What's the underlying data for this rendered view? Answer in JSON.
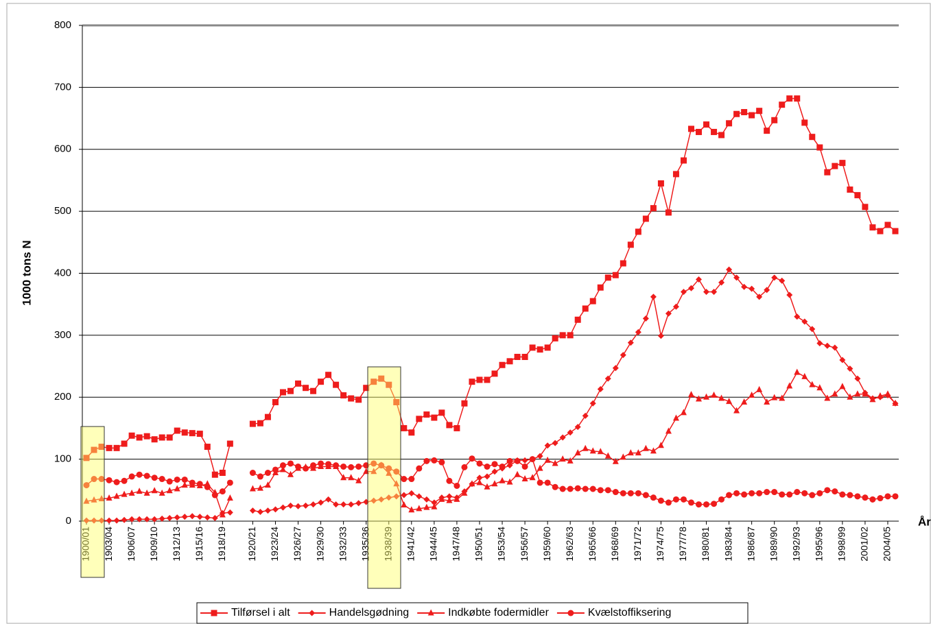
{
  "chart_data": {
    "type": "line",
    "y_label": "1000 tons N",
    "x_label": "År",
    "ylim": [
      0,
      800
    ],
    "yticks": [
      0,
      100,
      200,
      300,
      400,
      500,
      600,
      700,
      800
    ],
    "grid": true,
    "legend": "bottom",
    "categories": [
      "1900/01",
      null,
      null,
      "1903/04",
      null,
      null,
      "1906/07",
      null,
      null,
      "1909/10",
      null,
      null,
      "1912/13",
      null,
      null,
      "1915/16",
      null,
      null,
      "1918/19",
      null,
      null,
      null,
      "1920/21",
      null,
      null,
      "1923/24",
      null,
      null,
      "1926/27",
      null,
      null,
      "1929/30",
      null,
      null,
      "1932/33",
      null,
      null,
      "1935/36",
      null,
      null,
      "1938/39",
      null,
      null,
      "1941/42",
      null,
      null,
      "1944/45",
      null,
      null,
      "1947/48",
      null,
      null,
      "1950/51",
      null,
      null,
      "1953/54",
      null,
      null,
      "1956/57",
      null,
      null,
      "1959/60",
      null,
      null,
      "1962/63",
      null,
      null,
      "1965/66",
      null,
      null,
      "1968/69",
      null,
      null,
      "1971/72",
      null,
      null,
      "1974/75",
      null,
      null,
      "1977/78",
      null,
      null,
      "1980/81",
      null,
      null,
      "1983/84",
      null,
      null,
      "1986/87",
      null,
      null,
      "1989/90",
      null,
      null,
      "1992/93",
      null,
      null,
      "1995/96",
      null,
      null,
      "1998/99",
      null,
      null,
      "2001/02",
      null,
      null,
      "2004/05",
      null
    ],
    "series": [
      {
        "name": "Tilførsel i alt",
        "color": "#ee1c1c",
        "marker": "square",
        "values": [
          102,
          115,
          120,
          118,
          118,
          125,
          138,
          135,
          137,
          132,
          135,
          135,
          146,
          143,
          142,
          141,
          120,
          75,
          78,
          125,
          null,
          null,
          157,
          158,
          168,
          192,
          208,
          210,
          222,
          215,
          210,
          225,
          236,
          220,
          203,
          198,
          196,
          215,
          225,
          230,
          220,
          192,
          150,
          143,
          165,
          172,
          167,
          175,
          155,
          150,
          190,
          225,
          228,
          228,
          238,
          252,
          258,
          265,
          265,
          280,
          277,
          280,
          295,
          300,
          300,
          325,
          343,
          355,
          377,
          393,
          397,
          416,
          446,
          467,
          488,
          505,
          545,
          498,
          560,
          582,
          633,
          628,
          640,
          628,
          623,
          642,
          657,
          660,
          655,
          662,
          630,
          647,
          672,
          682,
          682,
          643,
          620,
          603,
          563,
          573,
          578,
          535,
          526,
          507,
          474,
          468,
          478,
          468
        ]
      },
      {
        "name": "Handelsgødning",
        "color": "#ee1c1c",
        "marker": "diamond",
        "values": [
          1,
          1,
          1,
          1,
          1,
          2,
          3,
          3,
          3,
          3,
          4,
          5,
          6,
          7,
          8,
          7,
          6,
          5,
          13,
          14,
          null,
          null,
          17,
          15,
          17,
          19,
          22,
          25,
          24,
          25,
          27,
          30,
          35,
          27,
          27,
          27,
          29,
          31,
          33,
          35,
          38,
          40,
          42,
          45,
          40,
          35,
          30,
          38,
          40,
          38,
          48,
          60,
          70,
          72,
          80,
          85,
          90,
          98,
          98,
          100,
          105,
          122,
          126,
          135,
          143,
          152,
          170,
          190,
          213,
          230,
          247,
          268,
          288,
          305,
          327,
          362,
          299,
          335,
          346,
          370,
          376,
          390,
          370,
          370,
          385,
          406,
          393,
          378,
          375,
          362,
          373,
          393,
          388,
          365,
          330,
          322,
          310,
          287,
          283,
          280,
          260,
          246,
          230,
          207,
          198,
          200,
          203,
          190
        ]
      },
      {
        "name": "Indkøbte fodermidler",
        "color": "#ee1c1c",
        "marker": "triangle",
        "values": [
          32,
          34,
          36,
          37,
          40,
          43,
          45,
          48,
          45,
          49,
          45,
          49,
          52,
          58,
          58,
          57,
          60,
          46,
          10,
          37,
          null,
          null,
          52,
          53,
          58,
          78,
          83,
          75,
          85,
          87,
          85,
          88,
          88,
          88,
          70,
          70,
          65,
          80,
          80,
          90,
          77,
          60,
          26,
          18,
          20,
          22,
          23,
          35,
          33,
          35,
          45,
          60,
          62,
          55,
          60,
          65,
          63,
          75,
          68,
          70,
          85,
          98,
          93,
          100,
          97,
          110,
          117,
          113,
          112,
          105,
          96,
          103,
          110,
          110,
          117,
          113,
          122,
          145,
          166,
          175,
          204,
          197,
          200,
          203,
          198,
          193,
          178,
          192,
          203,
          212,
          192,
          199,
          198,
          218,
          240,
          233,
          220,
          215,
          198,
          205,
          217,
          200,
          205,
          205,
          196,
          202,
          205,
          190
        ]
      },
      {
        "name": "Kvælstoffiksering",
        "color": "#ee1c1c",
        "marker": "circle",
        "values": [
          58,
          68,
          68,
          66,
          63,
          65,
          72,
          75,
          73,
          70,
          68,
          64,
          67,
          67,
          62,
          60,
          55,
          42,
          48,
          62,
          null,
          null,
          78,
          72,
          78,
          83,
          90,
          93,
          88,
          85,
          90,
          93,
          92,
          90,
          88,
          87,
          88,
          90,
          93,
          90,
          85,
          80,
          68,
          68,
          85,
          97,
          98,
          95,
          65,
          57,
          87,
          101,
          93,
          88,
          92,
          88,
          97,
          97,
          88,
          100,
          62,
          62,
          55,
          52,
          52,
          53,
          52,
          52,
          50,
          50,
          47,
          45,
          45,
          45,
          42,
          38,
          33,
          30,
          35,
          35,
          30,
          27,
          27,
          28,
          35,
          42,
          45,
          43,
          45,
          45,
          47,
          47,
          43,
          43,
          47,
          45,
          42,
          45,
          50,
          48,
          43,
          42,
          40,
          38,
          35,
          37,
          40,
          40
        ]
      }
    ]
  }
}
